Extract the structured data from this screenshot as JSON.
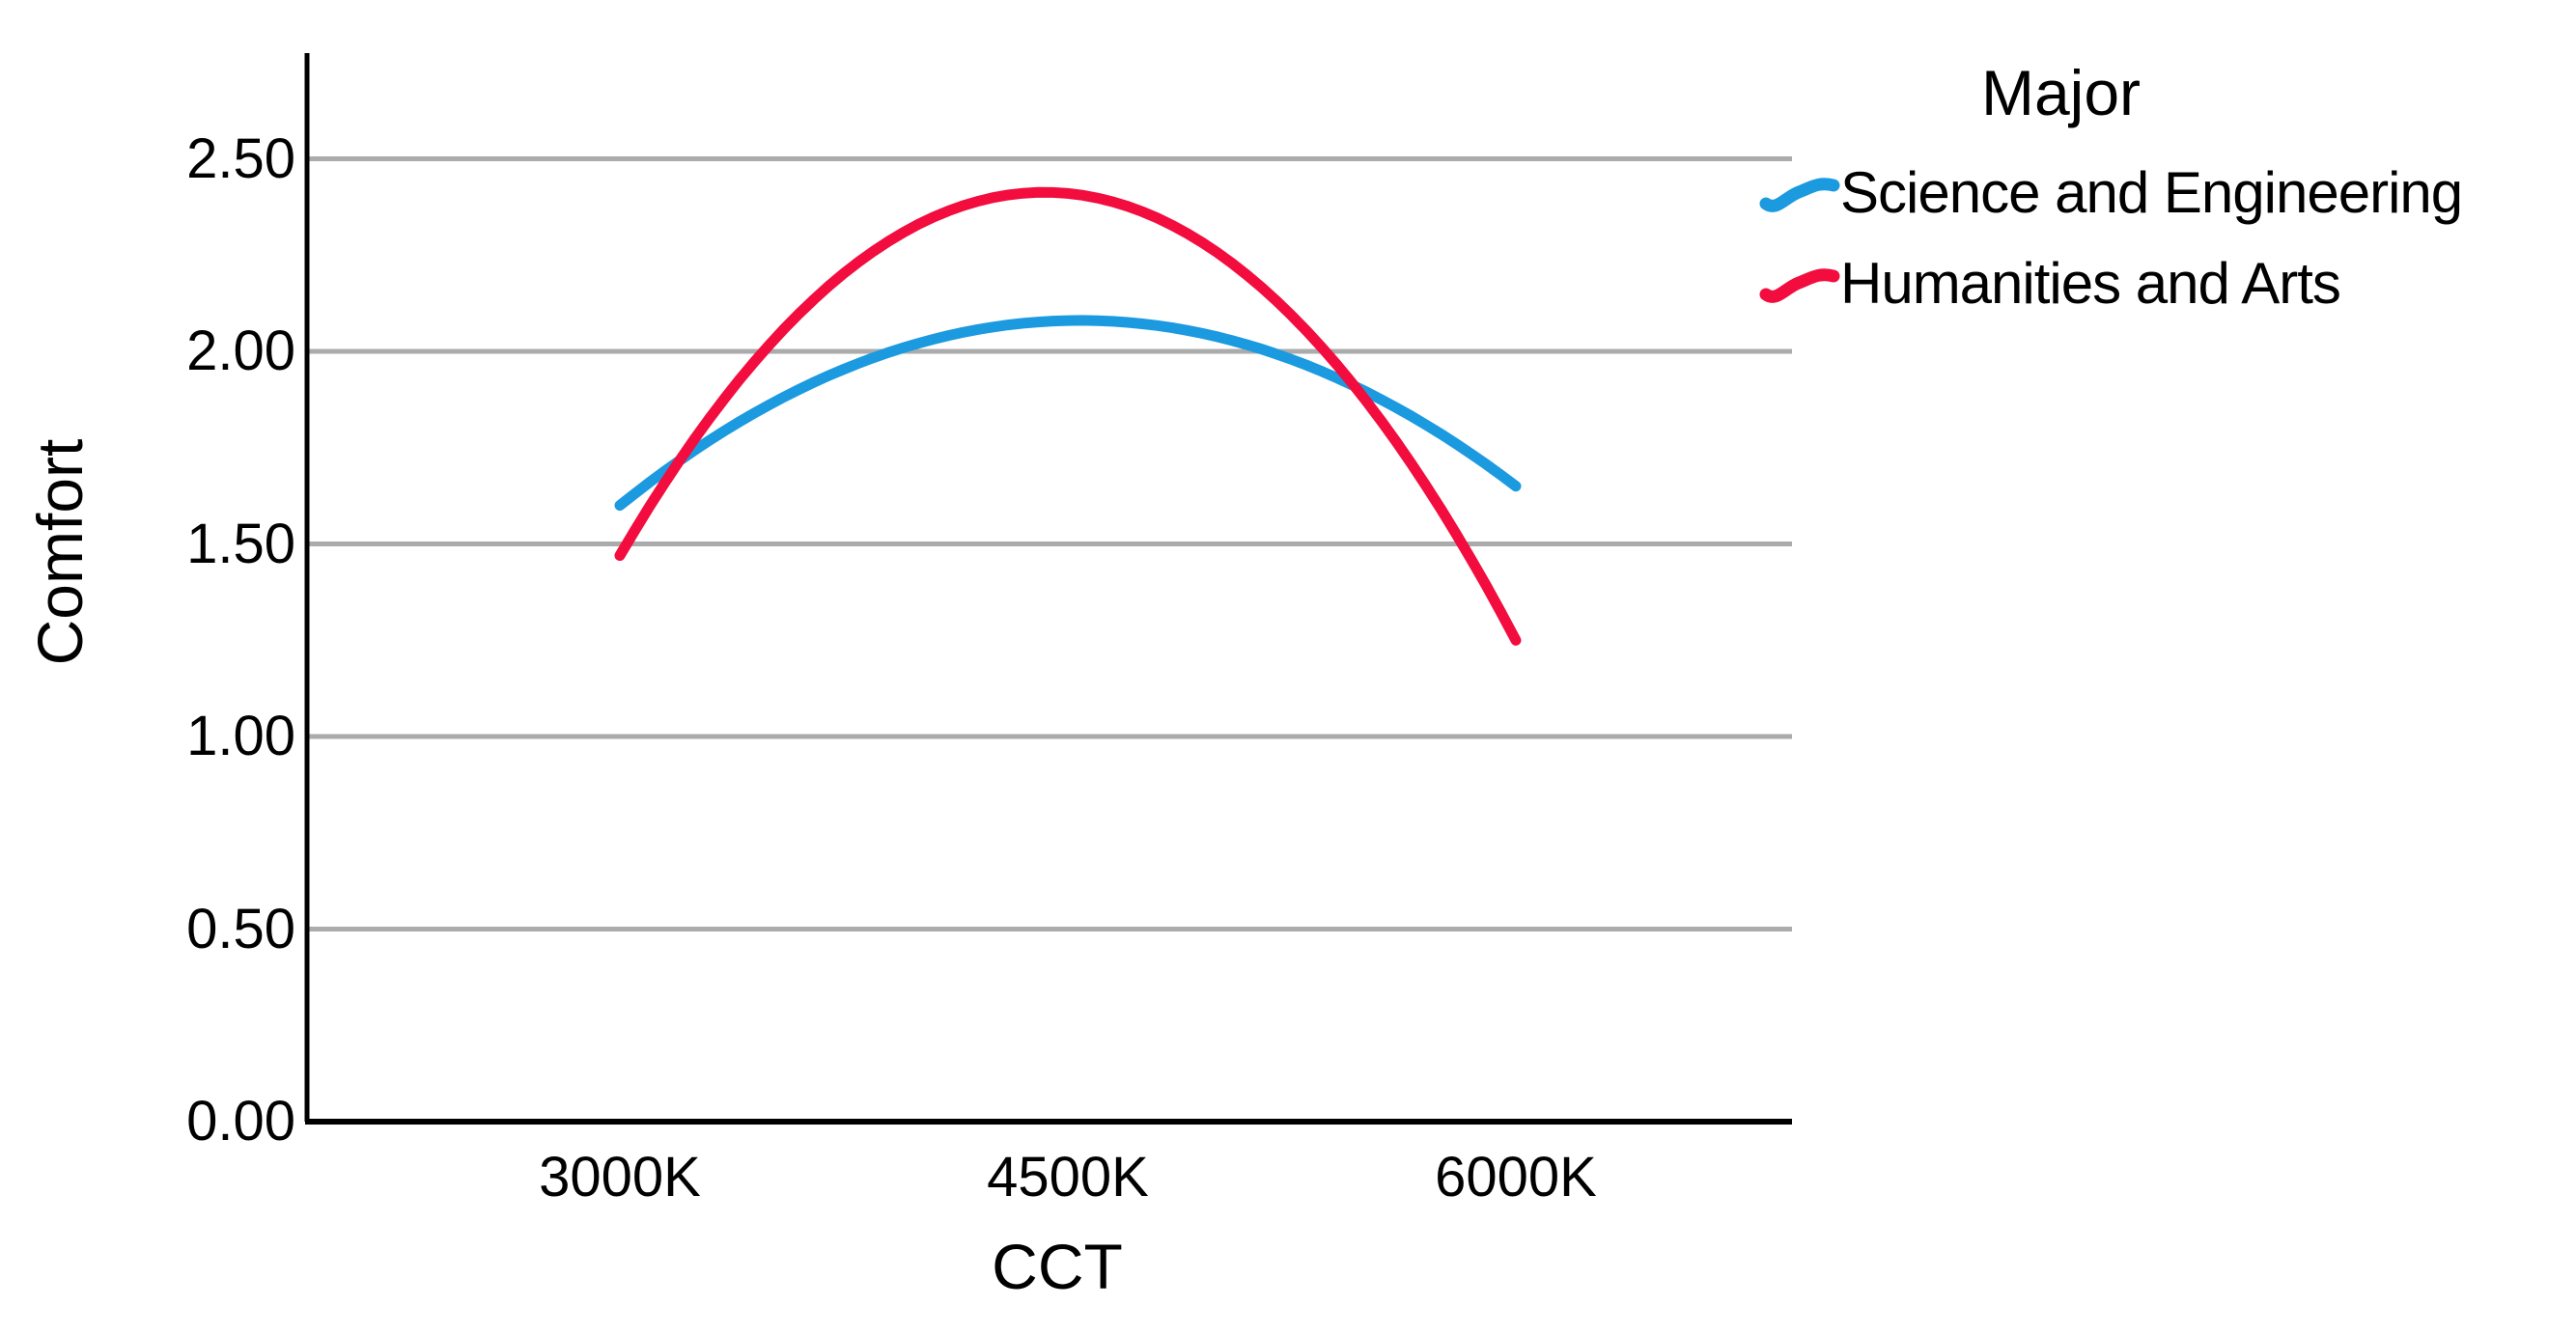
{
  "chart_data": {
    "type": "line",
    "title": "",
    "xlabel": "CCT",
    "ylabel": "Comfort",
    "x": [
      3000,
      4500,
      6000
    ],
    "x_tick_labels": [
      "3000K",
      "4500K",
      "6000K"
    ],
    "yticks": [
      0.0,
      0.5,
      1.0,
      1.5,
      2.0,
      2.5
    ],
    "ytick_labels": [
      "0.00",
      "0.50",
      "1.00",
      "1.50",
      "2.00",
      "2.50"
    ],
    "ylim": [
      0.0,
      2.77
    ],
    "grid": "horizontal-only",
    "legend": {
      "title": "Major",
      "position": "top-right"
    },
    "series": [
      {
        "name": "Science and Engineering",
        "color": "#1B9AE0",
        "curve": "quadratic",
        "values": [
          1.6,
          2.08,
          1.65
        ]
      },
      {
        "name": "Humanities and Arts",
        "color": "#F20D3E",
        "curve": "quadratic",
        "values": [
          1.47,
          2.41,
          1.25
        ]
      }
    ],
    "colors": {
      "gridline": "#ABABAB",
      "axis": "#000000",
      "text": "#000000",
      "background": "#FFFFFF"
    }
  }
}
